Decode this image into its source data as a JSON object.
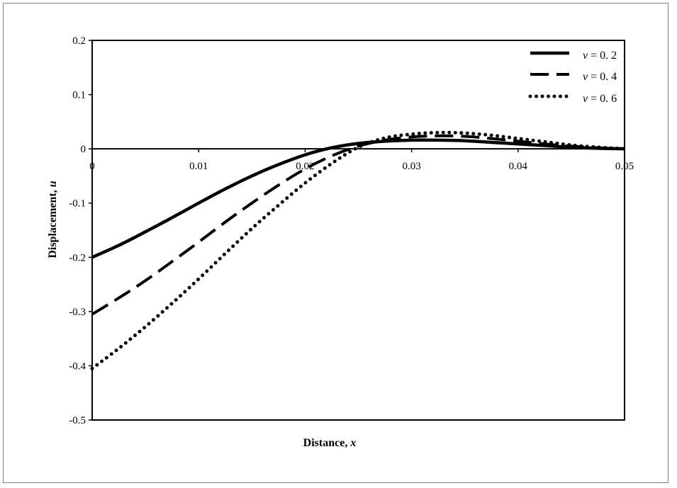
{
  "chart_data": {
    "type": "line",
    "xlabel": "Distance, x",
    "xlabel_parts": [
      "Distance, ",
      "x"
    ],
    "ylabel": "Displacement, u",
    "ylabel_parts": [
      "Displacement, ",
      "u"
    ],
    "xlim": [
      0,
      0.05
    ],
    "ylim": [
      -0.5,
      0.2
    ],
    "xticks": [
      0,
      0.01,
      0.02,
      0.03,
      0.04,
      0.05
    ],
    "xtick_labels": [
      "0",
      "0.01",
      "0.02",
      "0.03",
      "0.04",
      "0.05"
    ],
    "yticks": [
      0.2,
      0.1,
      0,
      -0.1,
      -0.2,
      -0.3,
      -0.4,
      -0.5
    ],
    "ytick_labels": [
      "0.2",
      "0.1",
      "0",
      "-0.1",
      "-0.2",
      "-0.3",
      "-0.4",
      "-0.5"
    ],
    "grid": false,
    "legend_position": "top-right",
    "series": [
      {
        "name": "v = 0.2",
        "label_var": "v",
        "label_rest": " = 0. 2",
        "style": "solid",
        "x": [
          0,
          0.0025,
          0.005,
          0.0075,
          0.01,
          0.0125,
          0.015,
          0.0175,
          0.02,
          0.0225,
          0.025,
          0.0275,
          0.03,
          0.0325,
          0.035,
          0.0375,
          0.04,
          0.0425,
          0.045,
          0.0475,
          0.05
        ],
        "y": [
          -0.2,
          -0.178,
          -0.153,
          -0.127,
          -0.1,
          -0.074,
          -0.05,
          -0.029,
          -0.011,
          0.002,
          0.01,
          0.014,
          0.016,
          0.016,
          0.015,
          0.012,
          0.009,
          0.006,
          0.003,
          0.001,
          0
        ]
      },
      {
        "name": "v = 0.4",
        "label_var": "v",
        "label_rest": " = 0. 4",
        "style": "dashed",
        "x": [
          0,
          0.0025,
          0.005,
          0.0075,
          0.01,
          0.0125,
          0.015,
          0.0175,
          0.02,
          0.0225,
          0.025,
          0.0275,
          0.03,
          0.0325,
          0.035,
          0.0375,
          0.04,
          0.0425,
          0.045,
          0.0475,
          0.05
        ],
        "y": [
          -0.305,
          -0.275,
          -0.243,
          -0.208,
          -0.172,
          -0.135,
          -0.1,
          -0.067,
          -0.037,
          -0.013,
          0.005,
          0.016,
          0.022,
          0.024,
          0.023,
          0.019,
          0.014,
          0.009,
          0.005,
          0.002,
          0
        ]
      },
      {
        "name": "v = 0.6",
        "label_var": "v",
        "label_rest": " = 0. 6",
        "style": "dotted",
        "x": [
          0,
          0.0025,
          0.005,
          0.0075,
          0.01,
          0.0125,
          0.015,
          0.0175,
          0.02,
          0.0225,
          0.025,
          0.0275,
          0.03,
          0.0325,
          0.035,
          0.0375,
          0.04,
          0.0425,
          0.045,
          0.0475,
          0.05
        ],
        "y": [
          -0.405,
          -0.368,
          -0.328,
          -0.285,
          -0.24,
          -0.193,
          -0.147,
          -0.104,
          -0.063,
          -0.027,
          0.003,
          0.02,
          0.027,
          0.03,
          0.029,
          0.025,
          0.019,
          0.013,
          0.007,
          0.003,
          0
        ]
      }
    ]
  }
}
